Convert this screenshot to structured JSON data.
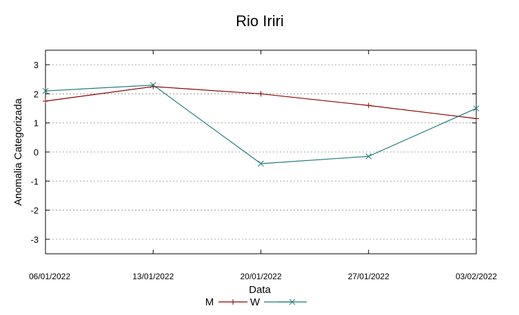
{
  "chart_data": {
    "type": "line",
    "title": "Rio Iriri",
    "xlabel": "Data",
    "ylabel": "Anomalia Categorizada",
    "categories": [
      "06/01/2022",
      "13/01/2022",
      "20/01/2022",
      "27/01/2022",
      "03/02/2022"
    ],
    "ylim": [
      -3.5,
      3.5
    ],
    "yticks": [
      -3,
      -2,
      -1,
      0,
      1,
      2,
      3
    ],
    "ytick_labels": [
      "-3",
      "-2",
      "-1",
      "0",
      "1",
      "2",
      "3"
    ],
    "grid": true,
    "legend_position": "bottom",
    "series": [
      {
        "name": "M",
        "color": "#8b0000",
        "marker": "plus",
        "values": [
          1.75,
          2.25,
          2.0,
          1.6,
          1.15
        ]
      },
      {
        "name": "W",
        "color": "#1e7b7b",
        "marker": "x",
        "values": [
          2.1,
          2.3,
          -0.4,
          -0.15,
          1.5
        ]
      }
    ]
  }
}
